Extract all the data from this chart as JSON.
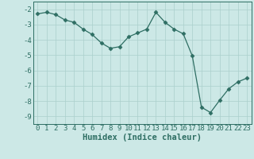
{
  "xlabel": "Humidex (Indice chaleur)",
  "x_values": [
    0,
    1,
    2,
    3,
    4,
    5,
    6,
    7,
    8,
    9,
    10,
    11,
    12,
    13,
    14,
    15,
    16,
    17,
    18,
    19,
    20,
    21,
    22,
    23
  ],
  "y_values": [
    -2.3,
    -2.2,
    -2.35,
    -2.7,
    -2.85,
    -3.3,
    -3.65,
    -4.2,
    -4.55,
    -4.45,
    -3.8,
    -3.55,
    -3.3,
    -2.2,
    -2.85,
    -3.3,
    -3.6,
    -5.05,
    -8.4,
    -8.75,
    -7.95,
    -7.2,
    -6.75,
    -6.5
  ],
  "line_color": "#2e6e63",
  "marker": "D",
  "marker_size": 2.5,
  "bg_color": "#cce8e6",
  "grid_color": "#aacfcc",
  "ylim": [
    -9.5,
    -1.5
  ],
  "xlim": [
    -0.5,
    23.5
  ],
  "yticks": [
    -2,
    -3,
    -4,
    -5,
    -6,
    -7,
    -8,
    -9
  ],
  "xticks": [
    0,
    1,
    2,
    3,
    4,
    5,
    6,
    7,
    8,
    9,
    10,
    11,
    12,
    13,
    14,
    15,
    16,
    17,
    18,
    19,
    20,
    21,
    22,
    23
  ],
  "tick_fontsize": 6.5,
  "xlabel_fontsize": 7.5,
  "label_color": "#2e6e63"
}
